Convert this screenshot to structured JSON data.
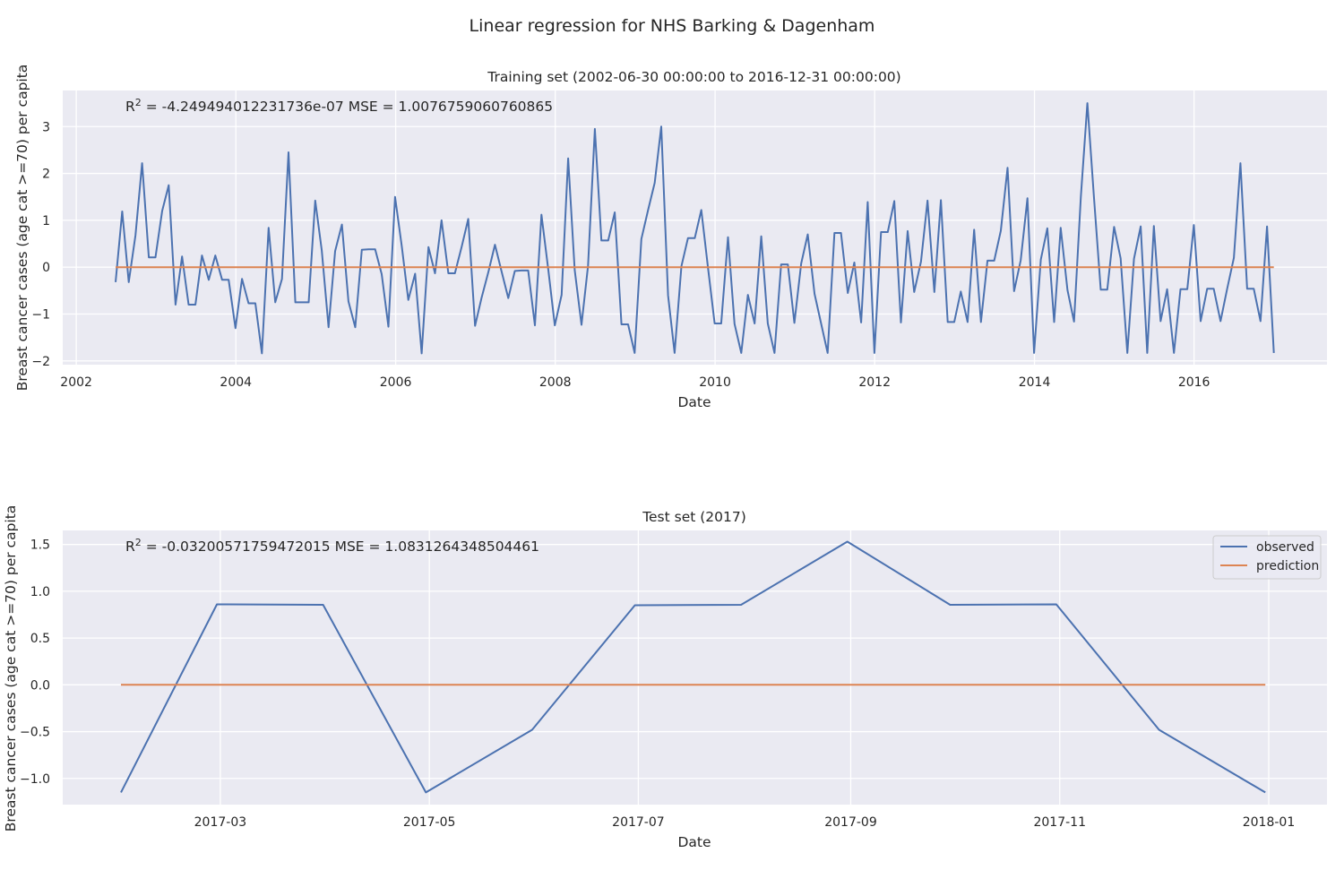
{
  "figure": {
    "suptitle": "Linear regression for NHS Barking & Dagenham"
  },
  "colors": {
    "observed": "#4c72b0",
    "prediction": "#dd8452",
    "panel_background": "#eaeaf2",
    "grid": "#ffffff"
  },
  "chart_data": [
    {
      "type": "line",
      "title": "Training set (2002-06-30 00:00:00 to 2016-12-31 00:00:00)",
      "xlabel": "Date",
      "ylabel": "Breast cancer cases (age cat >=70) per capita",
      "annotation": {
        "r2_label": "R",
        "r2_sup": "2",
        "text": " = -4.249494012231736e-07  MSE = 1.0076759060760865"
      },
      "x_tick_labels": [
        "2002",
        "2004",
        "2006",
        "2008",
        "2010",
        "2012",
        "2014",
        "2016"
      ],
      "y_tick_labels": [
        "−2",
        "−1",
        "0",
        "1",
        "2",
        "3"
      ],
      "x_tick_values": [
        "2002-01-01",
        "2004-01-01",
        "2006-01-01",
        "2008-01-01",
        "2010-01-01",
        "2012-01-01",
        "2014-01-01",
        "2016-01-01"
      ],
      "y_tick_values": [
        -2,
        -1,
        0,
        1,
        2,
        3
      ],
      "xlim": [
        "2001-10-31",
        "2017-08-31"
      ],
      "ylim": [
        -2.08,
        3.77
      ],
      "grid": true,
      "x_start": "2002-06-30",
      "x_end": "2016-12-31",
      "series": [
        {
          "key": "observed",
          "values": [
            -0.32,
            1.19,
            -0.32,
            0.68,
            2.22,
            0.21,
            0.21,
            1.2,
            1.75,
            -0.8,
            0.23,
            -0.8,
            -0.8,
            0.25,
            -0.27,
            0.25,
            -0.27,
            -0.27,
            -1.3,
            -0.25,
            -0.77,
            -0.77,
            -1.84,
            0.84,
            -0.75,
            -0.25,
            2.45,
            -0.75,
            -0.75,
            -0.75,
            1.42,
            0.36,
            -1.28,
            0.34,
            0.91,
            -0.73,
            -1.28,
            0.37,
            0.38,
            0.38,
            -0.15,
            -1.27,
            1.5,
            0.45,
            -0.7,
            -0.14,
            -1.84,
            0.43,
            -0.13,
            1.0,
            -0.13,
            -0.13,
            0.44,
            1.03,
            -1.25,
            -0.65,
            -0.1,
            0.48,
            -0.1,
            -0.66,
            -0.08,
            -0.07,
            -0.07,
            -1.24,
            1.12,
            -0.05,
            -1.24,
            -0.59,
            2.32,
            -0.06,
            -1.23,
            0.03,
            2.95,
            0.57,
            0.57,
            1.17,
            -1.22,
            -1.22,
            -1.83,
            0.6,
            1.21,
            1.8,
            3.0,
            -0.6,
            -1.83,
            0.02,
            0.62,
            0.62,
            1.22,
            0.02,
            -1.2,
            -1.2,
            0.64,
            -1.21,
            -1.83,
            -0.59,
            -1.2,
            0.66,
            -1.2,
            -1.83,
            0.06,
            0.06,
            -1.19,
            0.08,
            0.7,
            -0.57,
            -1.2,
            -1.83,
            0.73,
            0.73,
            -0.55,
            0.1,
            -1.18,
            1.39,
            -1.83,
            0.75,
            0.75,
            1.41,
            -1.18,
            0.77,
            -0.53,
            0.12,
            1.42,
            -0.53,
            1.43,
            -1.17,
            -1.17,
            -0.52,
            -1.17,
            0.8,
            -1.17,
            0.14,
            0.14,
            0.78,
            2.12,
            -0.51,
            0.15,
            1.47,
            -1.83,
            0.16,
            0.83,
            -1.17,
            0.84,
            -0.49,
            -1.16,
            1.5,
            3.5,
            1.5,
            -0.48,
            -0.48,
            0.86,
            0.19,
            -1.83,
            0.18,
            0.87,
            -1.83,
            0.88,
            -1.15,
            -0.47,
            -1.83,
            -0.47,
            -0.47,
            0.9,
            -1.15,
            -0.46,
            -0.46,
            -1.15,
            -0.47,
            0.2,
            2.22,
            -0.46,
            -0.46,
            -1.15,
            0.87,
            -1.83
          ]
        },
        {
          "key": "prediction",
          "values": [
            0.0,
            0.0
          ]
        }
      ]
    },
    {
      "type": "line",
      "title": "Test set (2017)",
      "xlabel": "Date",
      "ylabel": "Breast cancer cases (age cat >=70) per capita",
      "annotation": {
        "r2_label": "R",
        "r2_sup": "2",
        "text": " = -0.03200571759472015  MSE = 1.0831264348504461"
      },
      "legend": {
        "placement": "top-right",
        "entries": [
          "observed",
          "prediction"
        ]
      },
      "x_tick_labels": [
        "2017-03",
        "2017-05",
        "2017-07",
        "2017-09",
        "2017-11",
        "2018-01"
      ],
      "y_tick_labels": [
        "−1.0",
        "−0.5",
        "0.0",
        "0.5",
        "1.0",
        "1.5"
      ],
      "x_tick_values": [
        "2017-03-01",
        "2017-05-01",
        "2017-07-01",
        "2017-09-01",
        "2017-11-01",
        "2018-01-01"
      ],
      "y_tick_values": [
        -1.0,
        -0.5,
        0.0,
        0.5,
        1.0,
        1.5
      ],
      "xlim": [
        "2017-01-14",
        "2018-01-18"
      ],
      "ylim": [
        -1.28,
        1.65
      ],
      "grid": true,
      "x": [
        "2017-01-31",
        "2017-02-28",
        "2017-03-31",
        "2017-04-30",
        "2017-05-31",
        "2017-06-30",
        "2017-07-31",
        "2017-08-31",
        "2017-09-30",
        "2017-10-31",
        "2017-11-30",
        "2017-12-31"
      ],
      "series": [
        {
          "key": "observed",
          "values": [
            -1.15,
            0.86,
            0.855,
            -1.15,
            -0.48,
            0.85,
            0.855,
            1.53,
            0.855,
            0.86,
            -0.48,
            -1.15
          ]
        },
        {
          "key": "prediction",
          "values": [
            0.0,
            0.0,
            0.0,
            0.0,
            0.0,
            0.0,
            0.0,
            0.0,
            0.0,
            0.0,
            0.0,
            0.0
          ]
        }
      ]
    }
  ]
}
